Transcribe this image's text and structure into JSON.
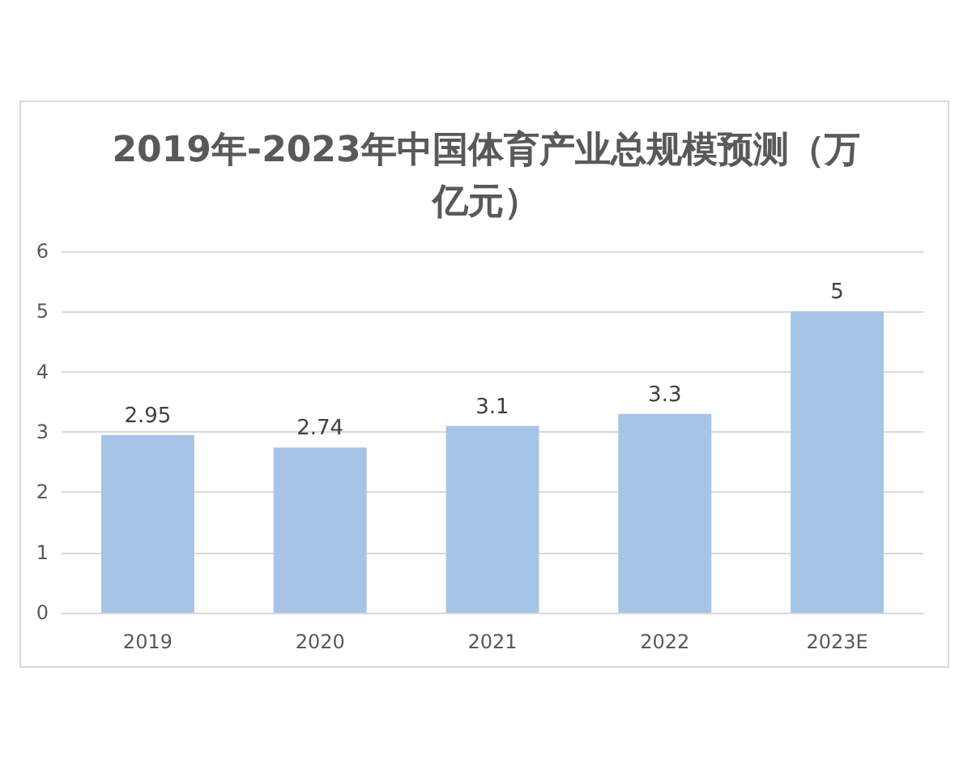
{
  "chart_data": {
    "type": "bar",
    "title": "2019年-2023年中国体育产业总规模预测（万亿元）",
    "categories": [
      "2019",
      "2020",
      "2021",
      "2022",
      "2023E"
    ],
    "values": [
      2.95,
      2.74,
      3.1,
      3.3,
      5
    ],
    "color": "#a6c4e6",
    "ylim": [
      0,
      6
    ],
    "yticks": [
      0,
      1,
      2,
      3,
      4,
      5,
      6
    ],
    "grid": "y",
    "data_labels": true
  }
}
